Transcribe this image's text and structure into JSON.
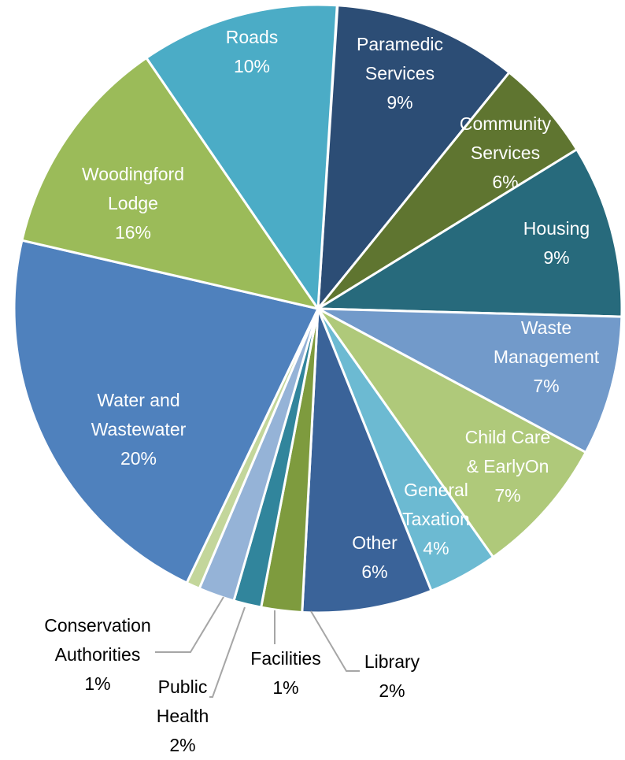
{
  "chart_data": {
    "type": "pie",
    "title": "",
    "slices": [
      {
        "name": "Paramedic Services",
        "pct": "9%",
        "value": 9,
        "color": "#2c4d75"
      },
      {
        "name": "Community Services",
        "pct": "6%",
        "value": 6,
        "color": "#5f7530"
      },
      {
        "name": "Housing",
        "pct": "9%",
        "value": 9,
        "color": "#276a7c"
      },
      {
        "name": "Waste Management",
        "pct": "7%",
        "value": 7,
        "color": "#729aca"
      },
      {
        "name": "Child Care & EarlyOn",
        "pct": "7%",
        "value": 7,
        "color": "#afc97a"
      },
      {
        "name": "General Taxation",
        "pct": "4%",
        "value": 4,
        "color": "#6cbad2"
      },
      {
        "name": "Other",
        "pct": "6%",
        "value": 6,
        "color": "#3a6399"
      },
      {
        "name": "Library",
        "pct": "2%",
        "value": 2,
        "color": "#7e9b3e"
      },
      {
        "name": "Facilities",
        "pct": "1%",
        "value": 1,
        "color": "#31859c"
      },
      {
        "name": "Public Health",
        "pct": "2%",
        "value": 2,
        "color": "#95b3d7"
      },
      {
        "name": "Conservation Authorities",
        "pct": "1%",
        "value": 1,
        "color": "#c3d69b"
      },
      {
        "name": "Water and Wastewater",
        "pct": "20%",
        "value": 20,
        "color": "#4f81bd"
      },
      {
        "name": "Woodingford Lodge",
        "pct": "16%",
        "value": 16,
        "color": "#9bbb59"
      },
      {
        "name": "Roads",
        "pct": "10%",
        "value": 10,
        "color": "#4bacc6"
      }
    ]
  }
}
